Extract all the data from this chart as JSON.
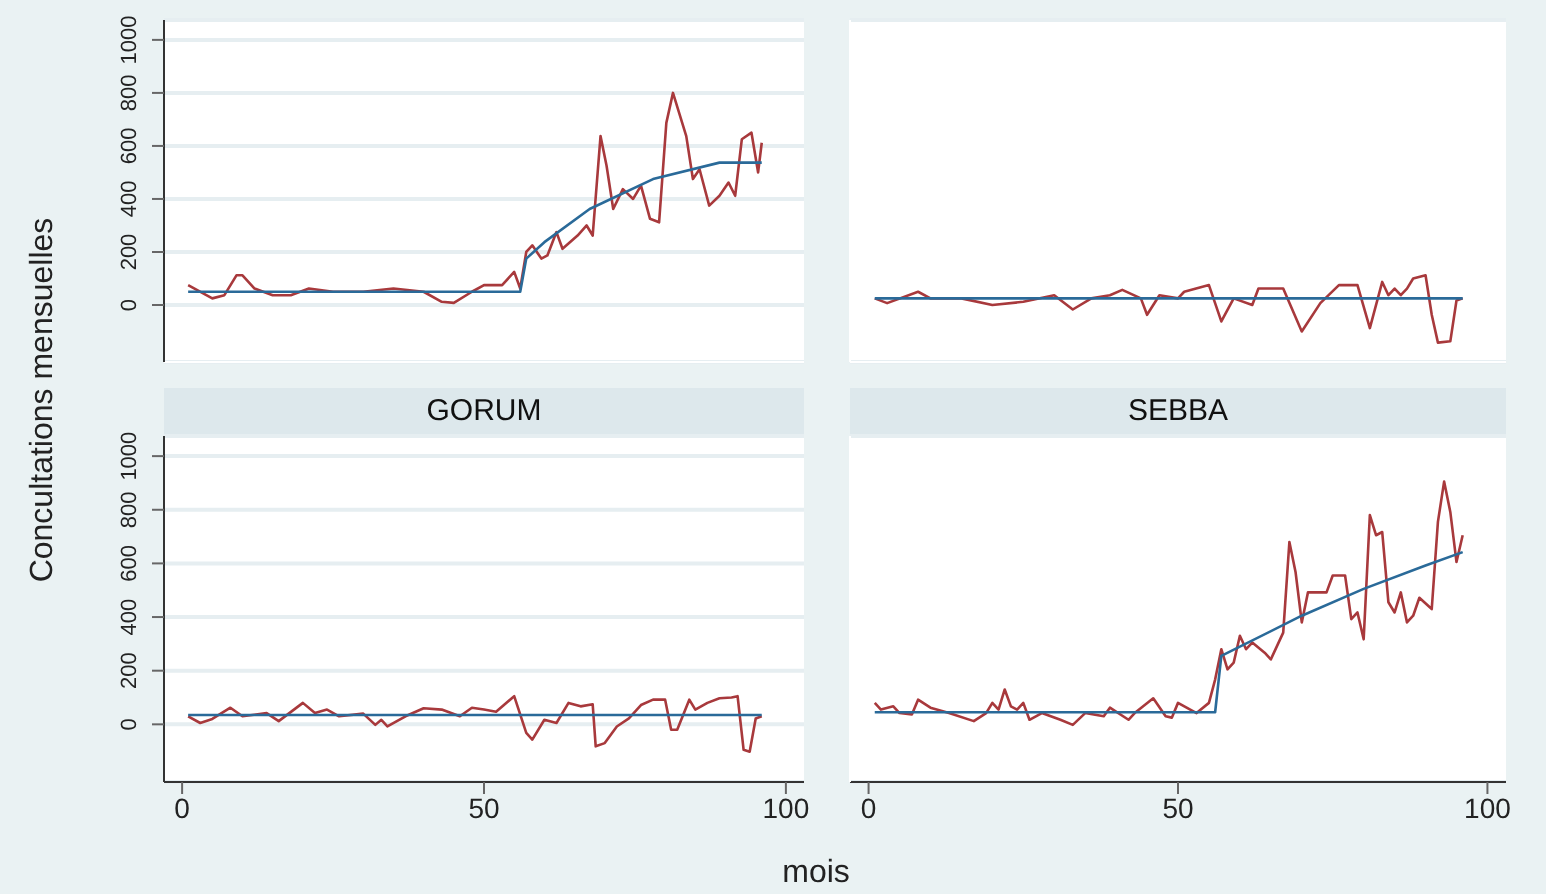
{
  "chart_data": [
    {
      "type": "line",
      "ylabel": "Concultations mensuelles",
      "xlim": [
        -3,
        103
      ],
      "ylim": [
        -215,
        1075
      ],
      "xticks": [
        0,
        50,
        100
      ],
      "yticks": [
        0,
        200,
        400,
        600,
        800,
        1000
      ],
      "grid": "y",
      "tick_labels": "y",
      "series": [
        {
          "color": "#a8393c",
          "x": [
            1,
            5,
            7,
            9,
            10,
            12,
            15,
            18,
            21,
            25,
            30,
            35,
            40,
            43,
            45,
            48,
            50,
            53,
            55,
            56,
            57,
            58,
            59.5,
            60.5,
            62,
            63,
            65.5,
            67,
            68,
            69.3,
            70.3,
            71.4,
            73,
            74.7,
            76,
            77.5,
            79,
            80.2,
            81.3,
            83.5,
            84.6,
            85.7,
            87.3,
            89,
            90.5,
            91.6,
            92.7,
            94.3,
            95.4,
            96
          ],
          "values": [
            75,
            25,
            37,
            112,
            112,
            62,
            37,
            37,
            62,
            50,
            50,
            62,
            50,
            12,
            8,
            50,
            75,
            75,
            125,
            62,
            200,
            225,
            175,
            187,
            275,
            212,
            262,
            300,
            262,
            637,
            525,
            362,
            437,
            400,
            450,
            325,
            312,
            687,
            800,
            637,
            475,
            512,
            375,
            412,
            462,
            412,
            625,
            650,
            500,
            612
          ]
        },
        {
          "color": "#2a6a99",
          "x": [
            1,
            56,
            57,
            60,
            67.5,
            78,
            89,
            96
          ],
          "values": [
            50,
            50,
            175,
            237,
            362,
            475,
            537,
            537
          ]
        }
      ]
    },
    {
      "type": "line",
      "xlim": [
        -3,
        103
      ],
      "ylim": [
        -215,
        1075
      ],
      "xticks": [
        0,
        50,
        100
      ],
      "yticks": [
        0,
        200,
        400,
        600,
        800,
        1000
      ],
      "grid": "y",
      "tick_labels": false,
      "series": [
        {
          "color": "#a8393c",
          "x": [
            1,
            3,
            8,
            10,
            15,
            20,
            25,
            30,
            33,
            36,
            39,
            41,
            44,
            45,
            47,
            50,
            51,
            55,
            57,
            59,
            62,
            63,
            67,
            70,
            73,
            76,
            79,
            81,
            83,
            84,
            85,
            86,
            87,
            88,
            90,
            91,
            92,
            94,
            95,
            96
          ],
          "values": [
            25,
            7,
            50,
            25,
            25,
            0,
            12,
            37,
            -17,
            25,
            37,
            57,
            25,
            -37,
            37,
            25,
            50,
            75,
            -62,
            25,
            0,
            62,
            62,
            -100,
            7,
            75,
            75,
            -87,
            87,
            37,
            62,
            37,
            62,
            100,
            112,
            -37,
            -142,
            -137,
            17,
            25
          ]
        },
        {
          "color": "#2a6a99",
          "x": [
            1,
            96
          ],
          "values": [
            25,
            25
          ]
        }
      ]
    },
    {
      "type": "line",
      "title": "GORUM",
      "xlabel": "mois",
      "xlim": [
        -3,
        103
      ],
      "ylim": [
        -215,
        1075
      ],
      "xticks": [
        0,
        50,
        100
      ],
      "yticks": [
        0,
        200,
        400,
        600,
        800,
        1000
      ],
      "grid": "y",
      "series": [
        {
          "color": "#a8393c",
          "x": [
            1,
            3,
            5,
            8,
            10,
            14,
            16,
            20,
            22,
            24,
            26,
            30,
            32,
            33,
            34,
            37,
            40,
            43,
            46,
            48,
            50,
            52,
            55,
            57,
            58,
            60,
            62,
            64,
            66,
            68,
            68.5,
            70,
            72,
            74,
            76,
            78,
            80,
            81,
            82,
            84,
            85,
            87,
            89,
            91,
            92,
            93,
            94,
            95,
            96
          ],
          "values": [
            30,
            5,
            20,
            62,
            30,
            42,
            12,
            80,
            42,
            55,
            30,
            40,
            -2,
            17,
            -8,
            30,
            60,
            55,
            30,
            62,
            55,
            47,
            105,
            -32,
            -57,
            17,
            5,
            80,
            67,
            75,
            -82,
            -70,
            -8,
            22,
            72,
            92,
            92,
            -20,
            -20,
            92,
            55,
            80,
            97,
            100,
            105,
            -95,
            -102,
            22,
            30
          ]
        },
        {
          "color": "#2a6a99",
          "x": [
            1,
            96
          ],
          "values": [
            35,
            35
          ]
        }
      ]
    },
    {
      "type": "line",
      "title": "SEBBA",
      "xlim": [
        -3,
        103
      ],
      "ylim": [
        -215,
        1075
      ],
      "xticks": [
        0,
        50,
        100
      ],
      "yticks": [
        0,
        200,
        400,
        600,
        800,
        1000
      ],
      "grid": "y",
      "tick_labels": "x",
      "series": [
        {
          "color": "#a8393c",
          "x": [
            1,
            2,
            4,
            5,
            7,
            8,
            10,
            13,
            17,
            19,
            20,
            21,
            22,
            23,
            24,
            25,
            26,
            28,
            31,
            33,
            35,
            38,
            39,
            42,
            43,
            46,
            48,
            49,
            50,
            53,
            55,
            56,
            57,
            58,
            59,
            60,
            61,
            62,
            64,
            65,
            67,
            68,
            69,
            70,
            71,
            74,
            75,
            77,
            78,
            79,
            80,
            81,
            82,
            83,
            84,
            85,
            86,
            87,
            88,
            89,
            91,
            92,
            93,
            94,
            95,
            96
          ],
          "values": [
            80,
            55,
            67,
            42,
            37,
            92,
            62,
            42,
            12,
            42,
            80,
            55,
            130,
            67,
            55,
            80,
            17,
            42,
            17,
            -2,
            42,
            30,
            62,
            17,
            42,
            97,
            30,
            25,
            80,
            42,
            80,
            167,
            280,
            205,
            230,
            330,
            280,
            305,
            267,
            242,
            342,
            680,
            567,
            380,
            492,
            492,
            555,
            555,
            392,
            417,
            317,
            780,
            705,
            717,
            455,
            417,
            492,
            380,
            405,
            472,
            430,
            755,
            905,
            792,
            605,
            705
          ]
        },
        {
          "color": "#2a6a99",
          "x": [
            1,
            56,
            57,
            70,
            80,
            90,
            96
          ],
          "values": [
            45,
            45,
            255,
            405,
            505,
            592,
            642
          ]
        }
      ]
    }
  ]
}
